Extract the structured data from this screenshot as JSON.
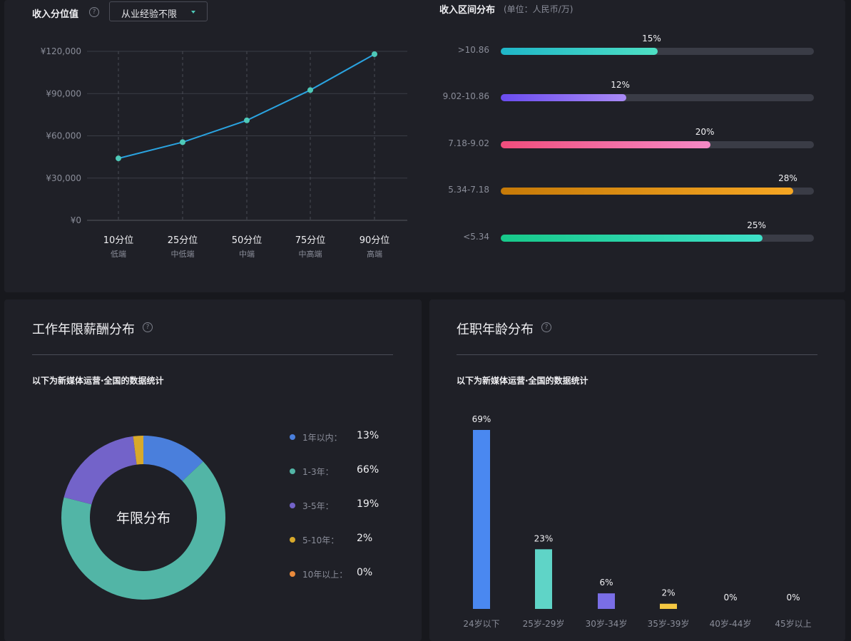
{
  "top_left": {
    "title": "收入分位值",
    "help": "?",
    "dropdown": "从业经验不限"
  },
  "top_right": {
    "title": "收入区间分布",
    "unit": "(单位：人民币/万)"
  },
  "percentile_chart": {
    "type": "line",
    "y_ticks": [
      "¥120,000",
      "¥90,000",
      "¥60,000",
      "¥30,000",
      "¥0"
    ],
    "ylim": [
      0,
      120000
    ],
    "categories": [
      "10分位",
      "25分位",
      "50分位",
      "75分位",
      "90分位"
    ],
    "subcategories": [
      "低端",
      "中低端",
      "中端",
      "中高端",
      "高端"
    ],
    "values": [
      44000,
      55500,
      71000,
      92500,
      118000
    ],
    "color": "#4ec9b8"
  },
  "income_ranges": {
    "type": "bar",
    "rows": [
      {
        "label": ">10.86",
        "pct": "15%",
        "value": 0.5,
        "from": "#1fb6c8",
        "to": "#4ee0c4"
      },
      {
        "label": "9.02-10.86",
        "pct": "12%",
        "value": 0.4,
        "from": "#6a4cf0",
        "to": "#a98af5"
      },
      {
        "label": "7.18-9.02",
        "pct": "20%",
        "value": 0.67,
        "from": "#f04d7c",
        "to": "#f58ac6"
      },
      {
        "label": "5.34-7.18",
        "pct": "28%",
        "value": 0.935,
        "from": "#c67a08",
        "to": "#f5a623"
      },
      {
        "label": "<5.34",
        "pct": "25%",
        "value": 0.835,
        "from": "#17c98a",
        "to": "#3ee0c8"
      }
    ]
  },
  "years_section": {
    "title": "工作年限薪酬分布",
    "note": "以下为新媒体运营·全国的数据统计",
    "center_label": "年限分布"
  },
  "age_section": {
    "title": "任职年龄分布",
    "note": "以下为新媒体运营·全国的数据统计"
  },
  "chart_data": [
    {
      "type": "line",
      "title": "收入分位值",
      "categories": [
        "10分位",
        "25分位",
        "50分位",
        "75分位",
        "90分位"
      ],
      "values": [
        44000,
        55500,
        71000,
        92500,
        118000
      ],
      "ylim": [
        0,
        120000
      ]
    },
    {
      "type": "bar",
      "title": "收入区间分布",
      "categories": [
        ">10.86",
        "9.02-10.86",
        "7.18-9.02",
        "5.34-7.18",
        "<5.34"
      ],
      "values": [
        15,
        12,
        20,
        28,
        25
      ]
    },
    {
      "type": "pie",
      "title": "工作年限薪酬分布",
      "categories": [
        "1年以内：",
        "1-3年：",
        "3-5年：",
        "5-10年：",
        "10年以上："
      ],
      "labels": [
        "13%",
        "66%",
        "19%",
        "2%",
        "0%"
      ],
      "values": [
        13,
        66,
        19,
        2,
        0
      ],
      "colors": [
        "#4a7fdc",
        "#52b5a6",
        "#7363c9",
        "#d8a92b",
        "#e98a3c"
      ]
    },
    {
      "type": "bar",
      "title": "任职年龄分布",
      "categories": [
        "24岁以下",
        "25岁-29岁",
        "30岁-34岁",
        "35岁-39岁",
        "40岁-44岁",
        "45岁以上"
      ],
      "labels": [
        "69%",
        "23%",
        "6%",
        "2%",
        "0%",
        "0%"
      ],
      "values": [
        69,
        23,
        6,
        2,
        0,
        0
      ],
      "colors": [
        "#4a88f0",
        "#5fd4c7",
        "#7a6ee6",
        "#f5c842",
        "#e98a3c",
        "#e98a3c"
      ]
    }
  ]
}
